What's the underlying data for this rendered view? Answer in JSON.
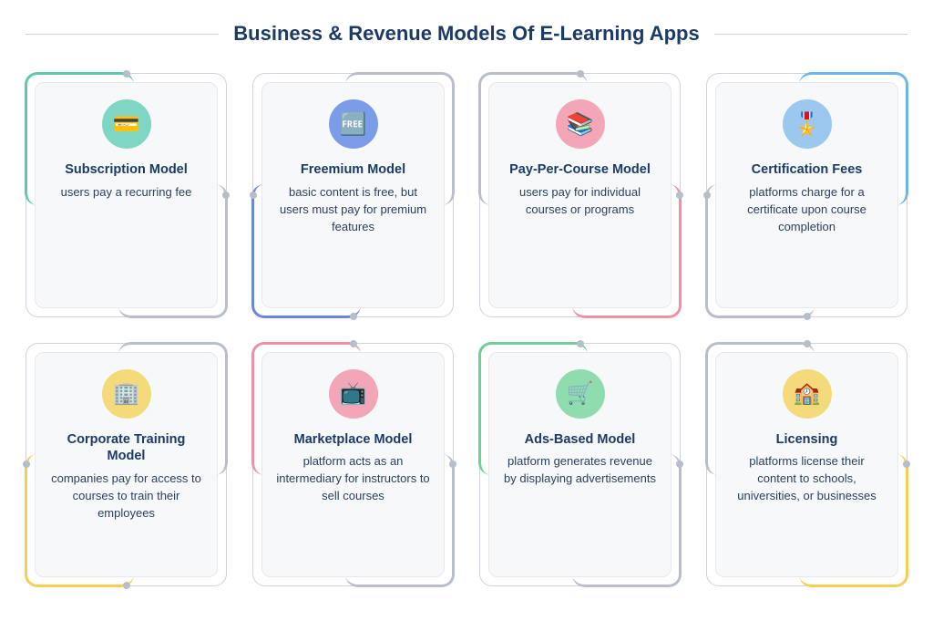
{
  "title": "Business & Revenue Models Of E-Learning Apps",
  "title_color": "#1b3a66",
  "title_fontsize": 22,
  "background": "#ffffff",
  "card_bg": "#f7f8fa",
  "card_border": "#e6e8ed",
  "outer_border": "#cfd3db",
  "dot_color": "#b7bdc9",
  "text_color_title": "#1b3a66",
  "text_color_desc": "#2b3f5c",
  "layout": {
    "cols": 4,
    "rows": 2,
    "gap": 28
  },
  "cards": [
    {
      "title": "Subscription Model",
      "desc": "users pay a recurring fee",
      "icon": "💳",
      "icon_bg": "#7fd6c2",
      "accent1_pos": "tl",
      "accent1_color": "#5fc9b0",
      "accent2_pos": "br",
      "accent2_color": "#b9bfca",
      "dots": [
        "top-hmid",
        "right-vmid"
      ]
    },
    {
      "title": "Freemium Model",
      "desc": "basic content is free, but users must pay for premium features",
      "icon": "🆓",
      "icon_bg": "#7c9be8",
      "accent1_pos": "tr",
      "accent1_color": "#b9bfca",
      "accent2_pos": "bl",
      "accent2_color": "#6b86e0",
      "dots": [
        "left-vmid",
        "bottom-hmid"
      ]
    },
    {
      "title": "Pay-Per-Course Model",
      "desc": "users pay for individual courses or programs",
      "icon": "📚",
      "icon_bg": "#f2a6b8",
      "accent1_pos": "tl",
      "accent1_color": "#b9bfca",
      "accent2_pos": "br",
      "accent2_color": "#ef8fa6",
      "dots": [
        "top-hmid",
        "right-vmid"
      ]
    },
    {
      "title": "Certification Fees",
      "desc": "platforms charge for a certificate upon course completion",
      "icon": "🎖️",
      "icon_bg": "#9cc8ef",
      "accent1_pos": "tr",
      "accent1_color": "#6fb4ee",
      "accent2_pos": "bl",
      "accent2_color": "#b9bfca",
      "dots": [
        "left-vmid",
        "bottom-hmid"
      ]
    },
    {
      "title": "Corporate Training Model",
      "desc": "companies pay for access to courses to train their employees",
      "icon": "🏢",
      "icon_bg": "#f5da7b",
      "accent1_pos": "tr",
      "accent1_color": "#b9bfca",
      "accent2_pos": "bl",
      "accent2_color": "#f3cf55",
      "dots": [
        "left-vmid",
        "bottom-hmid"
      ]
    },
    {
      "title": "Marketplace Model",
      "desc": "platform acts as an intermediary for instructors to sell courses",
      "icon": "📺",
      "icon_bg": "#f2a6b8",
      "accent1_pos": "tl",
      "accent1_color": "#ef8fa6",
      "accent2_pos": "br",
      "accent2_color": "#b9bfca",
      "dots": [
        "top-hmid",
        "right-vmid"
      ]
    },
    {
      "title": "Ads-Based Model",
      "desc": "platform generates revenue by displaying advertisements",
      "icon": "🛒",
      "icon_bg": "#8fdcae",
      "accent1_pos": "tl",
      "accent1_color": "#6fcf97",
      "accent2_pos": "br",
      "accent2_color": "#b9bfca",
      "dots": [
        "top-hmid",
        "right-vmid"
      ]
    },
    {
      "title": "Licensing",
      "desc": "platforms license their content to schools, universities, or businesses",
      "icon": "🏫",
      "icon_bg": "#f5da7b",
      "accent1_pos": "tl",
      "accent1_color": "#b9bfca",
      "accent2_pos": "br",
      "accent2_color": "#f3cf55",
      "dots": [
        "top-hmid",
        "right-vmid"
      ]
    }
  ]
}
